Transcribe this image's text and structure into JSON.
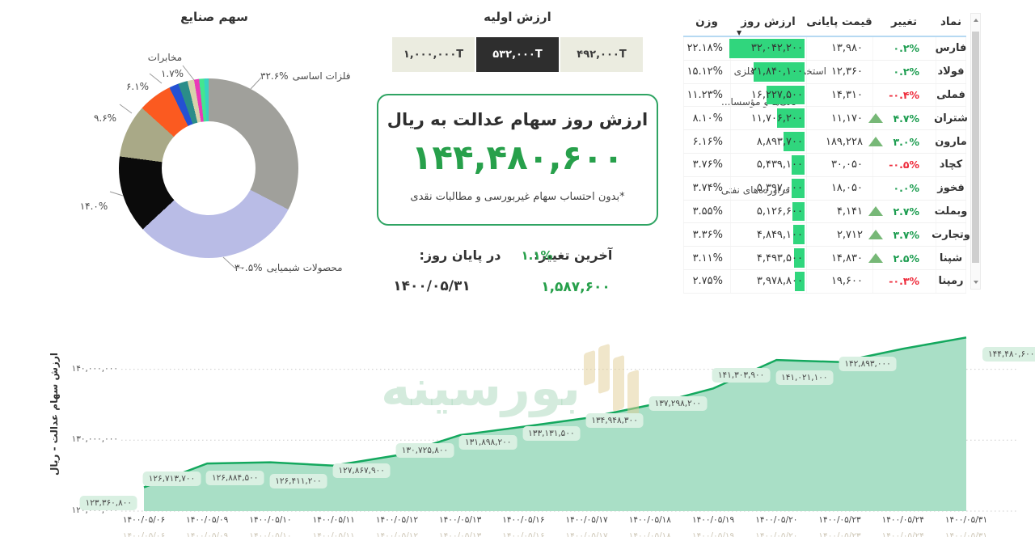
{
  "palette": {
    "accent_green": "#27a04b",
    "bar_green": "#30d67d",
    "change_green": "#1d9d50",
    "change_red": "#ee2b3b",
    "area_fill": "#a9dfc6",
    "area_line": "#14a85e",
    "toggle_dark": "#2e2e2e",
    "toggle_light": "#ebece0"
  },
  "industry_donut": {
    "title": "سهم صنایع",
    "slices": [
      {
        "label": "فلزات اساسی",
        "pct": "۳۲.۶%",
        "value": 32.6,
        "color": "#a0a09b"
      },
      {
        "label": "محصولات شیمیایی",
        "pct": "۳۰.۵%",
        "value": 30.5,
        "color": "#b9bce6"
      },
      {
        "label": "فراورده‌های نفتی",
        "pct": "۱۴.۰%",
        "value": 14.0,
        "color": "#0b0b0b"
      },
      {
        "label": "بانک‌ها و مؤسسا...",
        "pct": "۹.۶%",
        "value": 9.6,
        "color": "#a9a987"
      },
      {
        "label": "استخراج کانه‌های فلزی",
        "pct": "۶.۱%",
        "value": 6.1,
        "color": "#fb5a20"
      },
      {
        "label": "مخابرات",
        "pct": "۱.۷%",
        "value": 1.7,
        "color": "#2451d3"
      },
      {
        "label": "",
        "pct": "",
        "value": 1.7,
        "color": "#2a8d89"
      },
      {
        "label": "",
        "pct": "",
        "value": 1.2,
        "color": "#d8d2ab"
      },
      {
        "label": "",
        "pct": "",
        "value": 0.9,
        "color": "#ea39b8"
      },
      {
        "label": "",
        "pct": "",
        "value": 0.9,
        "color": "#43e68f"
      },
      {
        "label": "",
        "pct": "",
        "value": 0.8,
        "color": "#38d3c0"
      }
    ]
  },
  "initial_value": {
    "title": "ارزش اولیه",
    "options": [
      {
        "label": "۱,۰۰۰,۰۰۰T",
        "selected": false
      },
      {
        "label": "۵۳۲,۰۰۰T",
        "selected": true
      },
      {
        "label": "۴۹۲,۰۰۰T",
        "selected": false
      }
    ]
  },
  "value_card": {
    "title": "ارزش روز سهام عدالت به ریال",
    "value": "۱۴۴,۴۸۰,۶۰۰",
    "note": "*بدون احتساب سهام غیربورسی و مطالبات نقدی"
  },
  "last_change": {
    "label": "آخرین تغییر:",
    "pct": "۱.۱%",
    "amount": "۱,۵۸۷,۶۰۰",
    "end_label": "در پایان روز:",
    "date": "۱۴۰۰/۰۵/۳۱"
  },
  "table": {
    "headers": {
      "weight": "وزن",
      "day_value": "ارزش روز",
      "close": "قیمت پایانی",
      "change": "تغییر",
      "symbol": "نماد"
    },
    "rows": [
      {
        "symbol": "فارس",
        "change": "۰.۲%",
        "trend": "flat",
        "dir": "up",
        "close": "۱۳,۹۸۰",
        "value": "۳۲,۰۴۲,۲۰۰",
        "bar_pct": 100,
        "weight": "۲۲.۱۸%"
      },
      {
        "symbol": "فولاد",
        "change": "۰.۲%",
        "trend": "flat",
        "dir": "up",
        "close": "۱۲,۳۶۰",
        "value": "۲۱,۸۴۰,۱۰۰",
        "bar_pct": 68.2,
        "weight": "۱۵.۱۲%"
      },
      {
        "symbol": "فملی",
        "change": "-۰.۴%",
        "trend": "flat",
        "dir": "down",
        "close": "۱۴,۳۱۰",
        "value": "۱۶,۲۲۷,۵۰۰",
        "bar_pct": 50.6,
        "weight": "۱۱.۲۳%"
      },
      {
        "symbol": "شتران",
        "change": "۴.۷%",
        "trend": "up",
        "dir": "up",
        "close": "۱۱,۱۷۰",
        "value": "۱۱,۷۰۶,۲۰۰",
        "bar_pct": 36.5,
        "weight": "۸.۱۰%"
      },
      {
        "symbol": "مارون",
        "change": "۳.۰%",
        "trend": "up",
        "dir": "up",
        "close": "۱۸۹,۲۲۸",
        "value": "۸,۸۹۳,۷۰۰",
        "bar_pct": 27.8,
        "weight": "۶.۱۶%"
      },
      {
        "symbol": "کچاد",
        "change": "-۰.۵%",
        "trend": "flat",
        "dir": "down",
        "close": "۳۰,۰۵۰",
        "value": "۵,۴۳۹,۱۰۰",
        "bar_pct": 17.0,
        "weight": "۳.۷۶%"
      },
      {
        "symbol": "فخوز",
        "change": "۰.۰%",
        "trend": "flat",
        "dir": "up",
        "close": "۱۸,۰۵۰",
        "value": "۵,۳۹۷,۰۰۰",
        "bar_pct": 16.8,
        "weight": "۳.۷۴%"
      },
      {
        "symbol": "وبملت",
        "change": "۲.۷%",
        "trend": "up",
        "dir": "up",
        "close": "۴,۱۴۱",
        "value": "۵,۱۲۶,۶۰۰",
        "bar_pct": 16.0,
        "weight": "۳.۵۵%"
      },
      {
        "symbol": "وتجارت",
        "change": "۳.۷%",
        "trend": "up",
        "dir": "up",
        "close": "۲,۷۱۲",
        "value": "۴,۸۴۹,۱۰۰",
        "bar_pct": 15.1,
        "weight": "۳.۳۶%"
      },
      {
        "symbol": "شپنا",
        "change": "۲.۵%",
        "trend": "up",
        "dir": "up",
        "close": "۱۴,۸۳۰",
        "value": "۴,۴۹۳,۵۰۰",
        "bar_pct": 14.0,
        "weight": "۳.۱۱%"
      },
      {
        "symbol": "رمپنا",
        "change": "-۰.۳%",
        "trend": "flat",
        "dir": "down",
        "close": "۱۹,۶۰۰",
        "value": "۳,۹۷۸,۸۰۰",
        "bar_pct": 12.4,
        "weight": "۲.۷۵%"
      }
    ]
  },
  "chart_data": {
    "type": "area",
    "ylabel": "ارزش سهام عدالت - ریال",
    "x": [
      "۱۴۰۰/۰۵/۰۶",
      "۱۴۰۰/۰۵/۰۹",
      "۱۴۰۰/۰۵/۱۰",
      "۱۴۰۰/۰۵/۱۱",
      "۱۴۰۰/۰۵/۱۲",
      "۱۴۰۰/۰۵/۱۳",
      "۱۴۰۰/۰۵/۱۶",
      "۱۴۰۰/۰۵/۱۷",
      "۱۴۰۰/۰۵/۱۸",
      "۱۴۰۰/۰۵/۱۹",
      "۱۴۰۰/۰۵/۲۰",
      "۱۴۰۰/۰۵/۲۳",
      "۱۴۰۰/۰۵/۲۴",
      "۱۴۰۰/۰۵/۳۱"
    ],
    "values": [
      123360800,
      126713700,
      126884500,
      126411200,
      127867900,
      130725800,
      131898200,
      133131500,
      134948300,
      137298200,
      141303900,
      141021100,
      142893000,
      144480600
    ],
    "point_labels": [
      "۱۲۳,۳۶۰,۸۰۰",
      "۱۲۶,۷۱۳,۷۰۰",
      "۱۲۶,۸۸۴,۵۰۰",
      "۱۲۶,۴۱۱,۲۰۰",
      "۱۲۷,۸۶۷,۹۰۰",
      "۱۳۰,۷۲۵,۸۰۰",
      "۱۳۱,۸۹۸,۲۰۰",
      "۱۳۳,۱۳۱,۵۰۰",
      "۱۳۴,۹۴۸,۳۰۰",
      "۱۳۷,۲۹۸,۲۰۰",
      "۱۴۱,۳۰۳,۹۰۰",
      "۱۴۱,۰۲۱,۱۰۰",
      "۱۴۲,۸۹۳,۰۰۰",
      "۱۴۴,۴۸۰,۶۰۰"
    ],
    "yticks": [
      {
        "v": 120000000,
        "label": "۱۲۰,۰۰۰,۰۰۰"
      },
      {
        "v": 130000000,
        "label": "۱۳۰,۰۰۰,۰۰۰"
      },
      {
        "v": 140000000,
        "label": "۱۴۰,۰۰۰,۰۰۰"
      }
    ],
    "ylim": [
      120000000,
      146000000
    ],
    "grid": "dotted-horizontal",
    "legend": "none"
  },
  "watermark": {
    "text": "بورسینه"
  }
}
